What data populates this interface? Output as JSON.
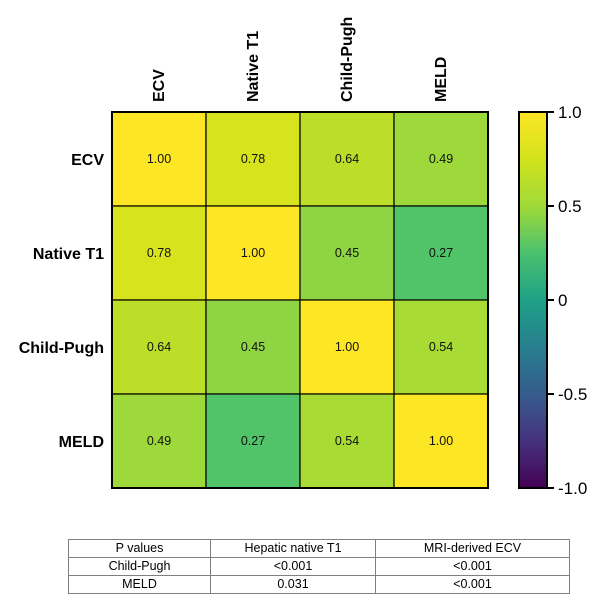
{
  "chart_data": {
    "type": "heatmap",
    "labels": [
      "ECV",
      "Native T1",
      "Child-Pugh",
      "MELD"
    ],
    "matrix": [
      [
        1.0,
        0.78,
        0.64,
        0.49
      ],
      [
        0.78,
        1.0,
        0.45,
        0.27
      ],
      [
        0.64,
        0.45,
        1.0,
        0.54
      ],
      [
        0.49,
        0.27,
        0.54,
        1.0
      ]
    ],
    "value_labels": [
      [
        "1.00",
        "0.78",
        "0.64",
        "0.49"
      ],
      [
        "0.78",
        "1.00",
        "0.45",
        "0.27"
      ],
      [
        "0.64",
        "0.45",
        "1.00",
        "0.54"
      ],
      [
        "0.49",
        "0.27",
        "0.54",
        "1.00"
      ]
    ],
    "colormap": "viridis",
    "colorbar": {
      "range": [
        -1.0,
        1.0
      ],
      "ticks": [
        "1.0",
        "0.5",
        "0",
        "-0.5",
        "-1.0"
      ],
      "tick_values": [
        1.0,
        0.5,
        0.0,
        -0.5,
        -1.0
      ]
    }
  },
  "table": {
    "headers": [
      "P values",
      "Hepatic native T1",
      "MRI-derived ECV"
    ],
    "rows": [
      [
        "Child-Pugh",
        "<0.001",
        "<0.001"
      ],
      [
        "MELD",
        "0.031",
        "<0.001"
      ]
    ]
  }
}
